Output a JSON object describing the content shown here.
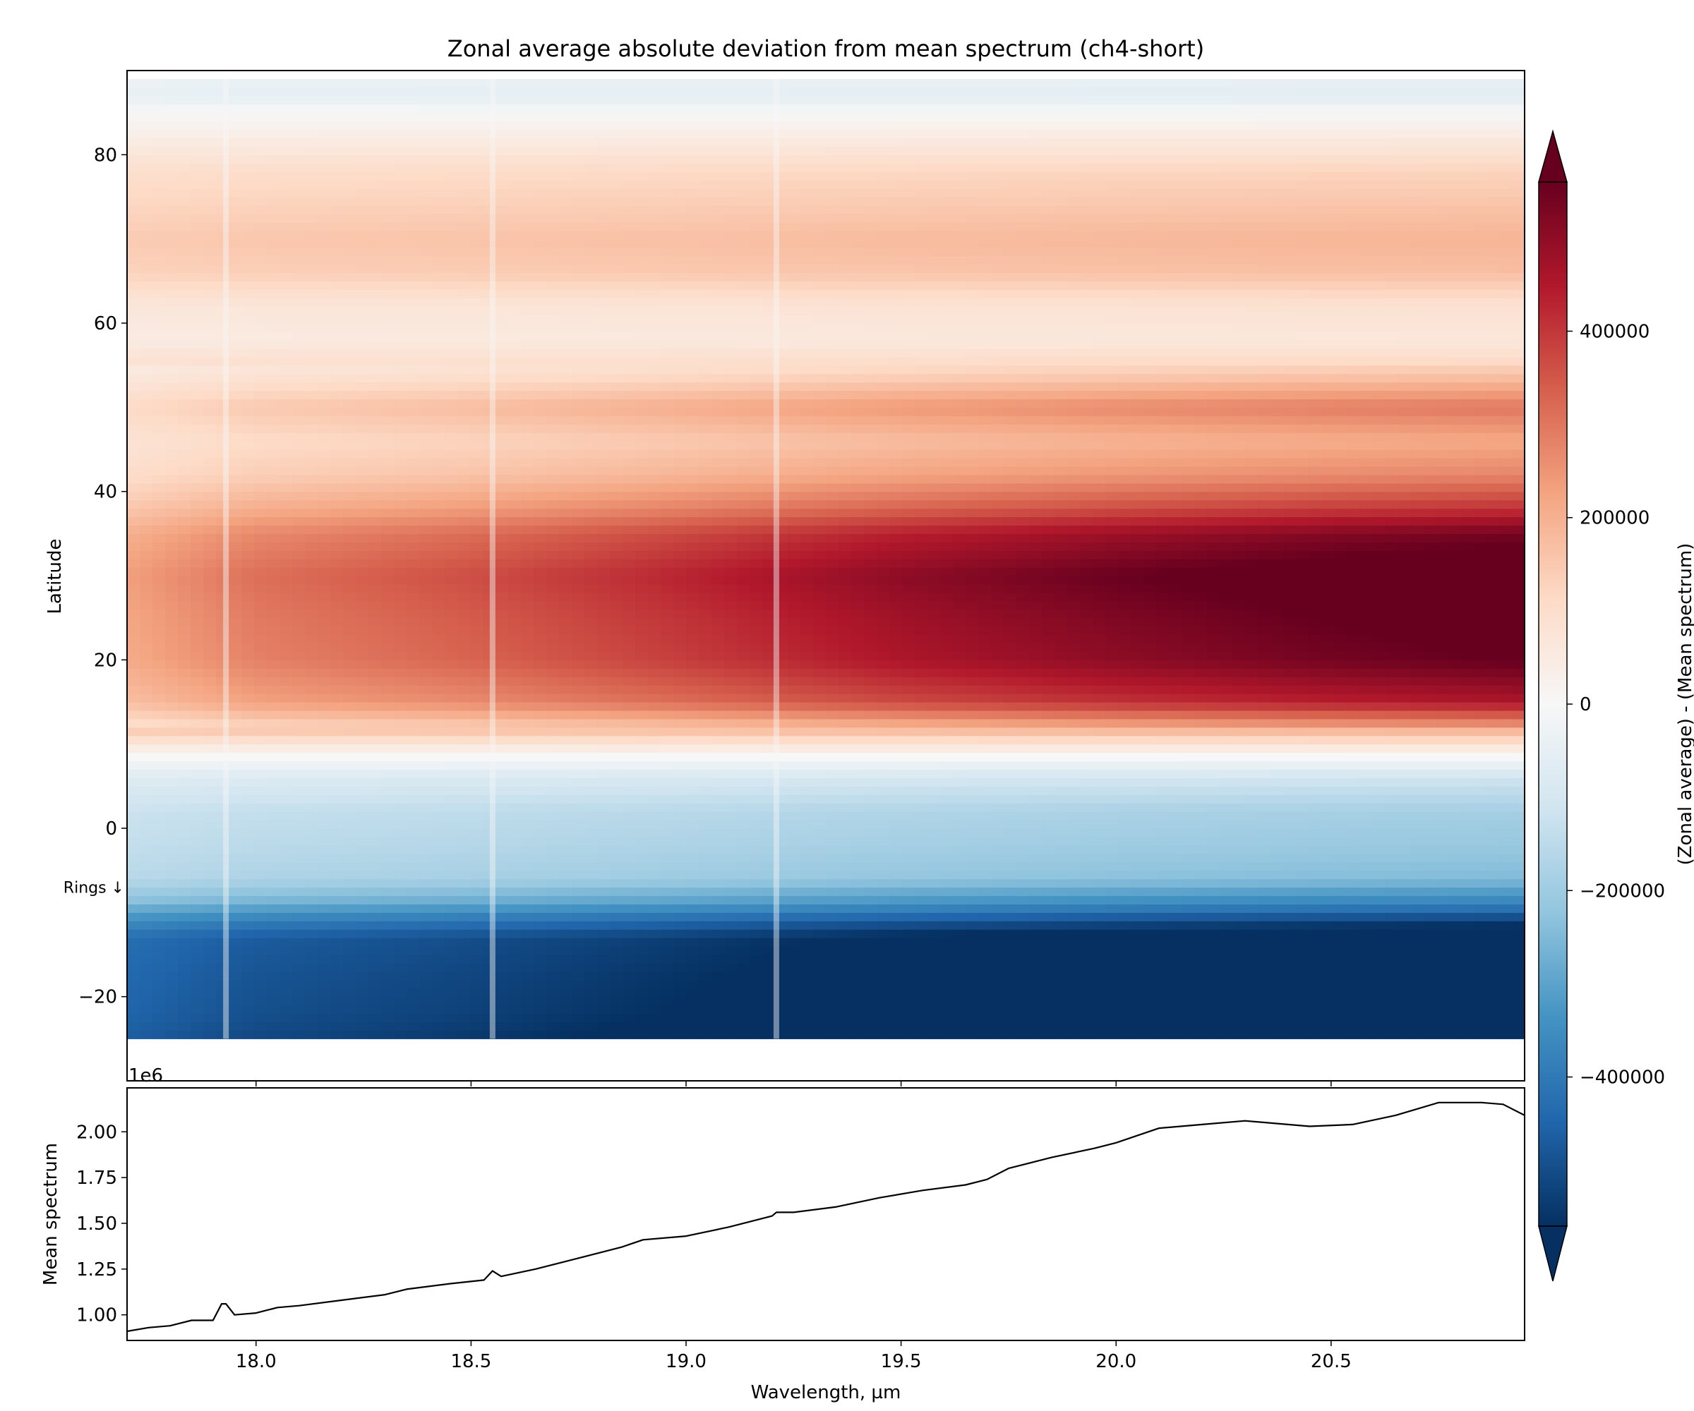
{
  "chart_data": [
    {
      "type": "heatmap",
      "title": "Zonal average absolute deviation from mean spectrum (ch4-short)",
      "xlabel": "",
      "ylabel": "Latitude",
      "xlim": [
        17.7,
        20.95
      ],
      "ylim": [
        -30,
        90
      ],
      "x_ticks": [
        "18.0",
        "18.5",
        "19.0",
        "19.5",
        "20.0",
        "20.5"
      ],
      "x_tick_values": [
        18.0,
        18.5,
        19.0,
        19.5,
        20.0,
        20.5
      ],
      "y_ticks": [
        "−20",
        "0",
        "20",
        "40",
        "60",
        "80"
      ],
      "y_tick_values": [
        -20,
        0,
        20,
        40,
        60,
        80
      ],
      "data_extent": {
        "y_min": -25,
        "y_max": 89
      },
      "annotation": "Rings ↓",
      "annotation_latitude": -7,
      "colormap": "RdBu_r",
      "colorbar": {
        "label": "(Zonal average) - (Mean spectrum)",
        "ticks": [
          "−400000",
          "−200000",
          "0",
          "200000",
          "400000"
        ],
        "tick_values": [
          -400000,
          -200000,
          0,
          200000,
          400000
        ],
        "vmin": -560000,
        "vmax": 560000,
        "extend": "both"
      },
      "latitude_profile": [
        {
          "lat": -25,
          "value": -620000
        },
        {
          "lat": -22,
          "value": -600000
        },
        {
          "lat": -18,
          "value": -590000
        },
        {
          "lat": -13,
          "value": -570000
        },
        {
          "lat": -11,
          "value": -470000
        },
        {
          "lat": -9,
          "value": -340000
        },
        {
          "lat": -6,
          "value": -220000
        },
        {
          "lat": -2,
          "value": -190000
        },
        {
          "lat": 2,
          "value": -170000
        },
        {
          "lat": 6,
          "value": -100000
        },
        {
          "lat": 9,
          "value": 20000
        },
        {
          "lat": 12,
          "value": 200000
        },
        {
          "lat": 15,
          "value": 380000
        },
        {
          "lat": 20,
          "value": 470000
        },
        {
          "lat": 25,
          "value": 490000
        },
        {
          "lat": 30,
          "value": 520000
        },
        {
          "lat": 35,
          "value": 450000
        },
        {
          "lat": 38,
          "value": 340000
        },
        {
          "lat": 42,
          "value": 230000
        },
        {
          "lat": 46,
          "value": 180000
        },
        {
          "lat": 50,
          "value": 250000
        },
        {
          "lat": 54,
          "value": 130000
        },
        {
          "lat": 58,
          "value": 60000
        },
        {
          "lat": 62,
          "value": 80000
        },
        {
          "lat": 66,
          "value": 160000
        },
        {
          "lat": 70,
          "value": 180000
        },
        {
          "lat": 74,
          "value": 150000
        },
        {
          "lat": 78,
          "value": 120000
        },
        {
          "lat": 82,
          "value": 50000
        },
        {
          "lat": 85,
          "value": 0
        },
        {
          "lat": 87,
          "value": -60000
        },
        {
          "lat": 89,
          "value": -40000
        }
      ],
      "wavelength_profile": [
        {
          "x": 17.7,
          "value": 0.3
        },
        {
          "x": 18.0,
          "value": 0.45
        },
        {
          "x": 18.5,
          "value": 0.55
        },
        {
          "x": 19.0,
          "value": 0.68
        },
        {
          "x": 19.5,
          "value": 0.82
        },
        {
          "x": 20.0,
          "value": 0.92
        },
        {
          "x": 20.5,
          "value": 1.0
        },
        {
          "x": 20.95,
          "value": 1.05
        }
      ],
      "spike_columns": [
        17.93,
        18.55,
        19.21
      ]
    },
    {
      "type": "line",
      "xlabel": "Wavelength, µm",
      "ylabel": "Mean spectrum",
      "offset_text": "1e6",
      "xlim": [
        17.7,
        20.95
      ],
      "ylim": [
        0.86,
        2.24
      ],
      "x_ticks": [
        "18.0",
        "18.5",
        "19.0",
        "19.5",
        "20.0",
        "20.5"
      ],
      "x_tick_values": [
        18.0,
        18.5,
        19.0,
        19.5,
        20.0,
        20.5
      ],
      "y_ticks": [
        "1.00",
        "1.25",
        "1.50",
        "1.75",
        "2.00"
      ],
      "y_tick_values": [
        1.0,
        1.25,
        1.5,
        1.75,
        2.0
      ],
      "series": [
        {
          "x": [
            17.7,
            17.75,
            17.8,
            17.85,
            17.9,
            17.92,
            17.93,
            17.95,
            18.0,
            18.05,
            18.1,
            18.2,
            18.3,
            18.35,
            18.45,
            18.53,
            18.55,
            18.57,
            18.65,
            18.75,
            18.85,
            18.9,
            19.0,
            19.1,
            19.2,
            19.21,
            19.25,
            19.35,
            19.45,
            19.55,
            19.65,
            19.7,
            19.75,
            19.85,
            19.95,
            20.0,
            20.1,
            20.2,
            20.3,
            20.45,
            20.55,
            20.65,
            20.75,
            20.85,
            20.9,
            20.95
          ],
          "y": [
            0.91,
            0.93,
            0.94,
            0.97,
            0.97,
            1.06,
            1.06,
            1.0,
            1.01,
            1.04,
            1.05,
            1.08,
            1.11,
            1.14,
            1.17,
            1.19,
            1.24,
            1.21,
            1.25,
            1.31,
            1.37,
            1.41,
            1.43,
            1.48,
            1.54,
            1.56,
            1.56,
            1.59,
            1.64,
            1.68,
            1.71,
            1.74,
            1.8,
            1.86,
            1.91,
            1.94,
            2.02,
            2.04,
            2.06,
            2.03,
            2.04,
            2.09,
            2.16,
            2.16,
            2.15,
            2.09
          ]
        }
      ]
    }
  ]
}
